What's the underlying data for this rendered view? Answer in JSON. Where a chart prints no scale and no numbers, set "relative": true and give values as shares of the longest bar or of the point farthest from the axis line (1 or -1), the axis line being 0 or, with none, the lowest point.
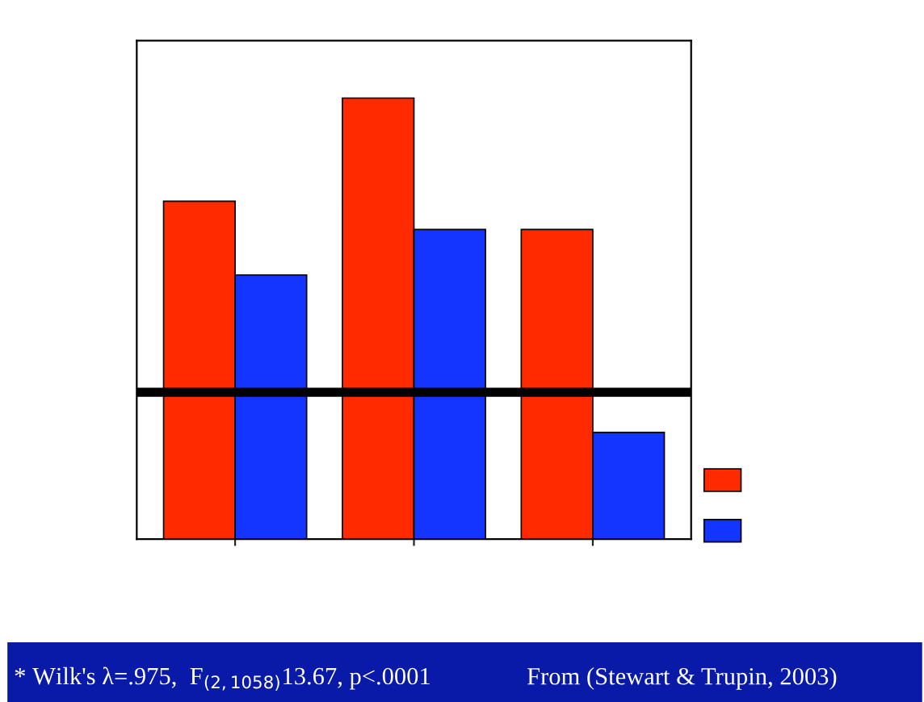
{
  "chart_data": {
    "type": "bar",
    "relative": true,
    "categories": [
      null,
      null,
      null
    ],
    "series": [
      {
        "color": "#ff2a00",
        "values": [
          0.766,
          1,
          0.702
        ]
      },
      {
        "color": "#1434ff",
        "values": [
          0.599,
          0.702,
          0.242
        ]
      }
    ],
    "ref_lines": [
      {
        "axis": "y",
        "value": 0.333,
        "color": "#000000",
        "line_style": "solid"
      }
    ],
    "grid": false,
    "annotations": [
      "* Wilk's λ=.975,  F$_{(2,1058)}$13.67, p<.0001",
      "From (Stewart & Trupin, 2003)"
    ]
  }
}
